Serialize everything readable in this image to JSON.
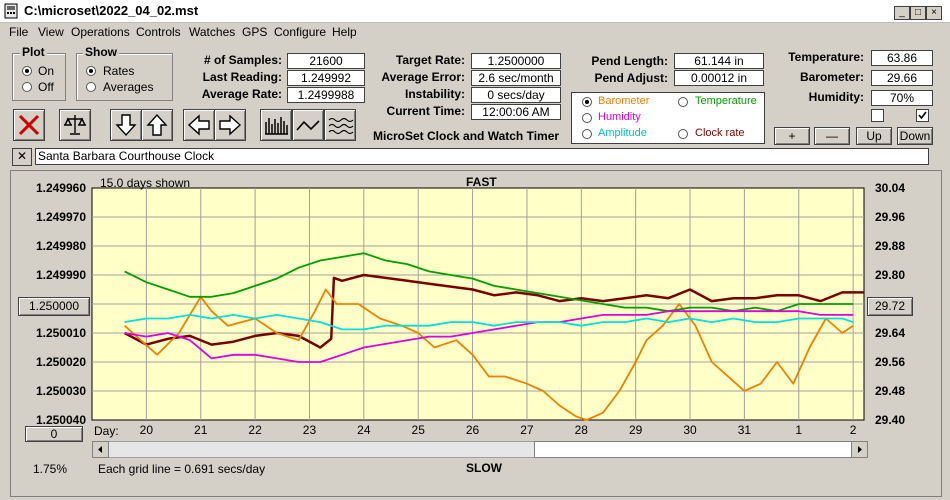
{
  "window": {
    "title": "C:\\microset\\2022_04_02.mst"
  },
  "menu": [
    "File",
    "View",
    "Operations",
    "Controls",
    "Watches",
    "GPS",
    "Configure",
    "Help"
  ],
  "plot_group": {
    "title": "Plot",
    "on_label": "On",
    "off_label": "Off",
    "selected": "On"
  },
  "show_group": {
    "title": "Show",
    "rates_label": "Rates",
    "averages_label": "Averages",
    "selected": "Rates"
  },
  "stats": {
    "samples_label": "# of Samples:",
    "samples": "21600",
    "last_reading_label": "Last Reading:",
    "last_reading": "1.249992",
    "average_rate_label": "Average Rate:",
    "average_rate": "1.2499988"
  },
  "targets": {
    "target_rate_label": "Target Rate:",
    "target_rate": "1.2500000",
    "average_error_label": "Average Error:",
    "average_error": "2.6 sec/month",
    "instability_label": "Instability:",
    "instability": "0 secs/day",
    "current_time_label": "Current Time:",
    "current_time": "12:00:06 AM"
  },
  "app_name": "MicroSet Clock and Watch Timer",
  "pendulum": {
    "length_label": "Pend Length:",
    "length": "61.144 in",
    "adjust_label": "Pend Adjust:",
    "adjust": "0.00012 in"
  },
  "overlay_options": {
    "barometer": "Barometer",
    "temperature": "Temperature",
    "humidity": "Humidity",
    "amplitude": "Amplitude",
    "clock_rate": "Clock rate",
    "selected": "Barometer"
  },
  "environment": {
    "temperature_label": "Temperature:",
    "temperature": "63.86",
    "barometer_label": "Barometer:",
    "barometer": "29.66",
    "humidity_label": "Humidity:",
    "humidity": "70%"
  },
  "adjust_buttons": {
    "plus": "+",
    "minus": "—",
    "up": "Up",
    "down": "Down"
  },
  "clock_name": "Santa Barbara Courthouse Clock",
  "chart_data": {
    "type": "line",
    "top_label": "FAST",
    "bottom_label": "SLOW",
    "days_shown": "15.0 days shown",
    "grid_note": "Each grid line = 0.691 secs/day",
    "x_axis_label": "Day:",
    "x_ticks": [
      "20",
      "21",
      "22",
      "23",
      "24",
      "25",
      "26",
      "27",
      "28",
      "29",
      "30",
      "31",
      "1",
      "2"
    ],
    "left_ticks": [
      "1.249960",
      "1.249970",
      "1.249980",
      "1.249990",
      "1.250000",
      "1.250010",
      "1.250020",
      "1.250030",
      "1.250040"
    ],
    "right_ticks": [
      "30.04",
      "29.96",
      "29.88",
      "29.80",
      "29.72",
      "29.64",
      "29.56",
      "29.48",
      "29.40"
    ],
    "left_button": "1.250000",
    "right_button": "29.72",
    "zero_button": "0",
    "scale_pct": "1.75%",
    "ylim_left": [
      1.24996,
      1.25004
    ],
    "ylim_right": [
      29.4,
      30.04
    ],
    "series": [
      {
        "name": "Clock rate",
        "color": "#7b0000",
        "x": [
          19.6,
          20.0,
          20.4,
          20.8,
          21.2,
          21.6,
          22.0,
          22.4,
          22.8,
          23.2,
          23.4,
          23.45,
          23.6,
          24.0,
          24.4,
          24.8,
          25.2,
          25.6,
          26.0,
          26.4,
          26.8,
          27.2,
          27.6,
          28.0,
          28.4,
          28.8,
          29.2,
          29.6,
          30.0,
          30.4,
          30.8,
          31.2,
          31.6,
          32.0,
          32.4,
          32.8,
          33.2
        ],
        "y": [
          1.25001,
          1.250014,
          1.250012,
          1.250011,
          1.250014,
          1.250013,
          1.250011,
          1.25001,
          1.250011,
          1.250015,
          1.250012,
          1.249991,
          1.249992,
          1.24999,
          1.249991,
          1.249992,
          1.249993,
          1.249994,
          1.249995,
          1.249997,
          1.249996,
          1.249997,
          1.249999,
          1.249998,
          1.249999,
          1.249998,
          1.249997,
          1.249998,
          1.249995,
          1.249999,
          1.249998,
          1.249998,
          1.249997,
          1.249997,
          1.249999,
          1.249996,
          1.249996
        ]
      },
      {
        "name": "Barometer",
        "color": "#f08000",
        "x": [
          19.6,
          19.9,
          20.2,
          20.6,
          21.0,
          21.2,
          21.5,
          22.0,
          22.4,
          22.8,
          23.1,
          23.3,
          23.5,
          23.9,
          24.3,
          24.7,
          25.0,
          25.3,
          25.7,
          26.0,
          26.3,
          26.6,
          27.0,
          27.3,
          27.6,
          27.9,
          28.1,
          28.4,
          28.7,
          29.0,
          29.2,
          29.5,
          29.8,
          30.1,
          30.4,
          30.7,
          31.0,
          31.3,
          31.6,
          31.9,
          32.2,
          32.5,
          32.8,
          33.0
        ],
        "y": [
          29.66,
          29.62,
          29.58,
          29.64,
          29.74,
          29.7,
          29.66,
          29.68,
          29.64,
          29.62,
          29.7,
          29.76,
          29.72,
          29.72,
          29.68,
          29.66,
          29.64,
          29.6,
          29.62,
          29.58,
          29.52,
          29.52,
          29.5,
          29.48,
          29.44,
          29.41,
          29.4,
          29.42,
          29.48,
          29.56,
          29.62,
          29.66,
          29.72,
          29.66,
          29.56,
          29.52,
          29.48,
          29.5,
          29.56,
          29.5,
          29.6,
          29.68,
          29.64,
          29.66
        ]
      },
      {
        "name": "Temperature",
        "color": "#00a000",
        "x": [
          19.6,
          20.0,
          20.4,
          20.8,
          21.2,
          21.6,
          22.0,
          22.4,
          22.8,
          23.2,
          23.6,
          24.0,
          24.4,
          24.8,
          25.2,
          25.6,
          26.0,
          26.4,
          26.8,
          27.2,
          27.6,
          28.0,
          28.4,
          28.8,
          29.2,
          29.6,
          30.0,
          30.4,
          30.8,
          31.2,
          31.6,
          32.0,
          32.4,
          32.8,
          33.0
        ],
        "y": [
          29.81,
          29.78,
          29.76,
          29.74,
          29.74,
          29.75,
          29.77,
          29.79,
          29.82,
          29.84,
          29.85,
          29.86,
          29.84,
          29.83,
          29.81,
          29.8,
          29.79,
          29.77,
          29.76,
          29.75,
          29.74,
          29.73,
          29.72,
          29.71,
          29.71,
          29.7,
          29.71,
          29.71,
          29.7,
          29.71,
          29.7,
          29.72,
          29.72,
          29.72,
          29.72
        ]
      },
      {
        "name": "Humidity",
        "color": "#e000e0",
        "x": [
          19.6,
          20.0,
          20.4,
          20.8,
          21.2,
          21.6,
          22.0,
          22.4,
          22.8,
          23.2,
          23.6,
          24.0,
          24.4,
          24.8,
          25.2,
          25.6,
          26.0,
          26.4,
          26.8,
          27.2,
          27.6,
          28.0,
          28.4,
          28.8,
          29.2,
          29.6,
          30.0,
          30.4,
          30.8,
          31.2,
          31.6,
          32.0,
          32.4,
          32.8,
          33.0
        ],
        "y": [
          29.64,
          29.63,
          29.64,
          29.62,
          29.57,
          29.58,
          29.58,
          29.57,
          29.56,
          29.56,
          29.58,
          29.6,
          29.61,
          29.62,
          29.63,
          29.63,
          29.64,
          29.65,
          29.66,
          29.67,
          29.67,
          29.68,
          29.69,
          29.69,
          29.69,
          29.7,
          29.7,
          29.7,
          29.7,
          29.7,
          29.7,
          29.7,
          29.69,
          29.69,
          29.69
        ]
      },
      {
        "name": "Amplitude",
        "color": "#00e0e0",
        "x": [
          19.6,
          20.0,
          20.4,
          20.8,
          21.2,
          21.6,
          22.0,
          22.4,
          22.8,
          23.2,
          23.6,
          24.0,
          24.4,
          24.8,
          25.2,
          25.6,
          26.0,
          26.4,
          26.8,
          27.2,
          27.6,
          28.0,
          28.4,
          28.8,
          29.2,
          29.6,
          30.0,
          30.4,
          30.8,
          31.2,
          31.6,
          32.0,
          32.4,
          32.8,
          33.0
        ],
        "y": [
          29.67,
          29.68,
          29.68,
          29.69,
          29.68,
          29.69,
          29.68,
          29.69,
          29.68,
          29.67,
          29.65,
          29.65,
          29.66,
          29.66,
          29.66,
          29.67,
          29.67,
          29.66,
          29.67,
          29.67,
          29.67,
          29.66,
          29.67,
          29.67,
          29.68,
          29.67,
          29.68,
          29.67,
          29.68,
          29.67,
          29.67,
          29.68,
          29.68,
          29.68,
          29.67
        ]
      }
    ]
  }
}
